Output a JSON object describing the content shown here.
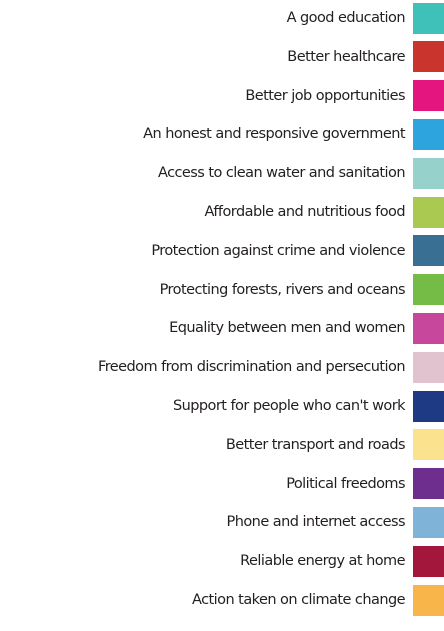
{
  "chart_data": {
    "type": "bar",
    "categories": [
      "A good education",
      "Better healthcare",
      "Better job opportunities",
      "An honest and responsive government",
      "Access to clean water and sanitation",
      "Affordable and nutritious food",
      "Protection against crime and violence",
      "Protecting forests, rivers and oceans",
      "Equality between men and women",
      "Freedom from discrimination and persecution",
      "Support for people who can't work",
      "Better transport and roads",
      "Political freedoms",
      "Phone and internet access",
      "Reliable energy at home",
      "Action taken on climate change"
    ],
    "colors": [
      "#3fc1b9",
      "#c9352c",
      "#e4157f",
      "#2ea4de",
      "#96d1cc",
      "#aac951",
      "#3a6f94",
      "#74bc46",
      "#c7479c",
      "#e1c3d0",
      "#1f3a85",
      "#fbe28f",
      "#6d2e8e",
      "#7fb4d8",
      "#a3173d",
      "#f8b549"
    ],
    "legend": "right"
  }
}
